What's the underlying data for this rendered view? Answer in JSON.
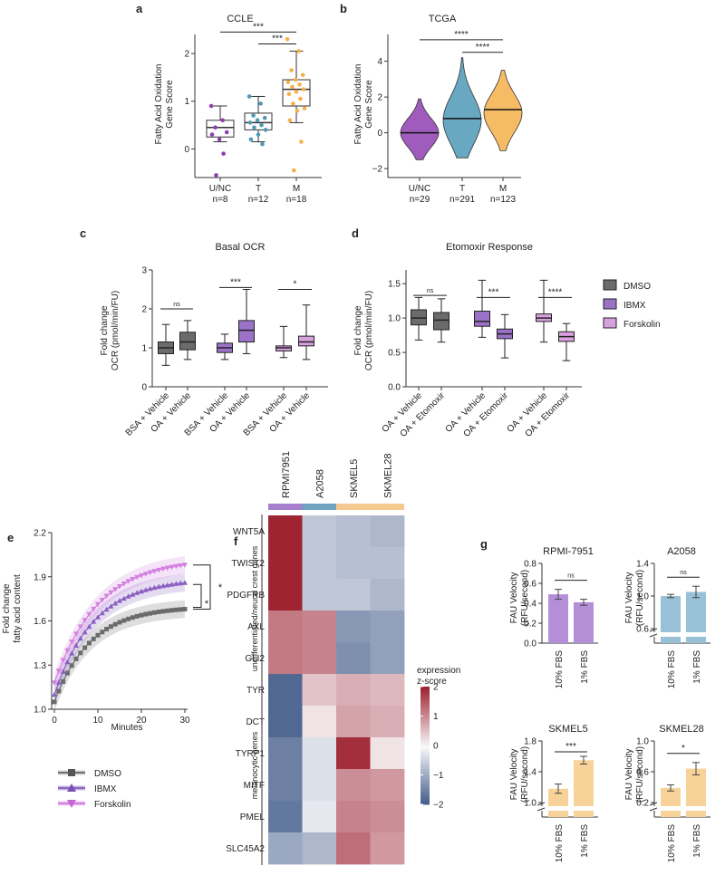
{
  "panels": {
    "a": {
      "letter": "a",
      "title": "CCLE",
      "ylabel_lines": [
        "Fatty Acid Oxidation",
        "Gene Score"
      ]
    },
    "b": {
      "letter": "b",
      "title": "TCGA",
      "ylabel_lines": [
        "Fatty Acid Oxidation",
        "Gene Score"
      ]
    },
    "c": {
      "letter": "c",
      "title": "Basal OCR",
      "ylabel_lines": [
        "Fold change",
        "OCR (pmol/min/FU)"
      ]
    },
    "d": {
      "letter": "d",
      "title": "Etomoxir Response",
      "ylabel_lines": [
        "Fold change",
        "OCR (pmol/min/FU)"
      ]
    },
    "e": {
      "letter": "e",
      "xlabel": "Minutes",
      "ylabel_lines": [
        "Fold change",
        "fatty acid content"
      ]
    },
    "f": {
      "letter": "f",
      "legend_title": [
        "expression",
        "z-score"
      ],
      "group_labels": [
        "undifferentiated/neural crest genes",
        "melanocytic genes"
      ]
    },
    "g": {
      "letter": "g",
      "ylabel_lines": [
        "FAU Velocity",
        "(RFU/second)"
      ],
      "xcats": [
        "10% FBS",
        "1% FBS"
      ]
    }
  },
  "legend_cd": {
    "items": [
      "DMSO",
      "IBMX",
      "Forskolin"
    ],
    "colors": [
      "#6b6b6b",
      "#9b72c8",
      "#d9a0e0"
    ]
  },
  "legend_e": {
    "items": [
      "DMSO",
      "IBMX",
      "Forskolin"
    ]
  },
  "colors": {
    "unc": "#8e3fb0",
    "t": "#4f99b6",
    "m": "#f5b04a"
  },
  "chart_data": [
    {
      "id": "a",
      "type": "box",
      "title": "CCLE",
      "ylabel": "Fatty Acid Oxidation Gene Score",
      "ylim": [
        -0.6,
        2.4
      ],
      "yticks": [
        0,
        1,
        2
      ],
      "categories": [
        "U/NC",
        "T",
        "M"
      ],
      "ns": [
        "n=8",
        "n=12",
        "n=18"
      ],
      "boxes": [
        {
          "q1": 0.25,
          "median": 0.45,
          "q3": 0.6,
          "wlo": 0.15,
          "whi": 0.9
        },
        {
          "q1": 0.4,
          "median": 0.55,
          "q3": 0.75,
          "wlo": 0.15,
          "whi": 1.1
        },
        {
          "q1": 0.9,
          "median": 1.25,
          "q3": 1.45,
          "wlo": 0.55,
          "whi": 2.05
        }
      ],
      "points": [
        [
          0.9,
          0.6,
          0.45,
          0.35,
          0.2,
          0.3,
          -0.1,
          -0.55
        ],
        [
          1.1,
          0.95,
          0.7,
          0.65,
          0.6,
          0.55,
          0.5,
          0.45,
          0.4,
          0.3,
          0.2,
          0.1
        ],
        [
          2.3,
          2.05,
          1.65,
          1.55,
          1.45,
          1.4,
          1.35,
          1.3,
          1.25,
          1.2,
          1.15,
          1.05,
          0.95,
          0.85,
          0.8,
          0.6,
          0.15,
          -0.45
        ]
      ],
      "sig": [
        {
          "from": 0,
          "to": 2,
          "label": "***",
          "y": 2.45
        },
        {
          "from": 1,
          "to": 2,
          "label": "***",
          "y": 2.2
        }
      ]
    },
    {
      "id": "b",
      "type": "violin",
      "title": "TCGA",
      "ylabel": "Fatty Acid Oxidation Gene Score",
      "ylim": [
        -2.5,
        5.5
      ],
      "yticks": [
        -2,
        0,
        2,
        4
      ],
      "categories": [
        "U/NC",
        "T",
        "M"
      ],
      "ns": [
        "n=29",
        "n=291",
        "n=123"
      ],
      "violins": [
        {
          "min": -1.5,
          "max": 1.9,
          "median": 0.0,
          "mode": 0.0,
          "width": 1.0
        },
        {
          "min": -1.4,
          "max": 4.2,
          "median": 0.8,
          "mode": 0.7,
          "width": 1.0
        },
        {
          "min": -1.0,
          "max": 3.5,
          "median": 1.3,
          "mode": 1.1,
          "width": 1.0
        }
      ],
      "sig": [
        {
          "from": 0,
          "to": 2,
          "label": "****",
          "y": 5.2
        },
        {
          "from": 1,
          "to": 2,
          "label": "****",
          "y": 4.5
        }
      ]
    },
    {
      "id": "c",
      "type": "box",
      "title": "Basal OCR",
      "ylabel": "Fold change OCR (pmol/min/FU)",
      "ylim": [
        0,
        3
      ],
      "yticks": [
        0,
        1,
        2,
        3
      ],
      "categories": [
        "BSA + Vehicle",
        "OA + Vehicle",
        "BSA + Vehicle",
        "OA + Vehicle",
        "BSA + Vehicle",
        "OA + Vehicle"
      ],
      "series": [
        "DMSO",
        "DMSO",
        "IBMX",
        "IBMX",
        "Forskolin",
        "Forskolin"
      ],
      "boxes": [
        {
          "q1": 0.85,
          "median": 1.0,
          "q3": 1.15,
          "wlo": 0.55,
          "whi": 1.6
        },
        {
          "q1": 0.95,
          "median": 1.15,
          "q3": 1.4,
          "wlo": 0.7,
          "whi": 1.7
        },
        {
          "q1": 0.88,
          "median": 1.0,
          "q3": 1.12,
          "wlo": 0.7,
          "whi": 1.35
        },
        {
          "q1": 1.15,
          "median": 1.45,
          "q3": 1.7,
          "wlo": 0.85,
          "whi": 2.5
        },
        {
          "q1": 0.92,
          "median": 1.0,
          "q3": 1.05,
          "wlo": 0.75,
          "whi": 1.55
        },
        {
          "q1": 1.05,
          "median": 1.15,
          "q3": 1.3,
          "wlo": 0.7,
          "whi": 2.1
        }
      ],
      "sig": [
        {
          "from": 0,
          "to": 1,
          "label": "ns",
          "y": 2.0
        },
        {
          "from": 2,
          "to": 3,
          "label": "***",
          "y": 2.55
        },
        {
          "from": 4,
          "to": 5,
          "label": "*",
          "y": 2.5
        }
      ]
    },
    {
      "id": "d",
      "type": "box",
      "title": "Etomoxir Response",
      "ylabel": "Fold change OCR (pmol/min/FU)",
      "ylim": [
        0,
        1.7
      ],
      "yticks": [
        0.0,
        0.5,
        1.0,
        1.5
      ],
      "categories": [
        "OA + Vehicle",
        "OA + Etomoxir",
        "OA + Vehicle",
        "OA + Etomoxir",
        "OA + Vehicle",
        "OA + Etomoxir"
      ],
      "series": [
        "DMSO",
        "DMSO",
        "IBMX",
        "IBMX",
        "Forskolin",
        "Forskolin"
      ],
      "boxes": [
        {
          "q1": 0.9,
          "median": 1.0,
          "q3": 1.12,
          "wlo": 0.68,
          "whi": 1.3
        },
        {
          "q1": 0.83,
          "median": 0.97,
          "q3": 1.08,
          "wlo": 0.65,
          "whi": 1.28
        },
        {
          "q1": 0.88,
          "median": 0.95,
          "q3": 1.1,
          "wlo": 0.72,
          "whi": 1.55
        },
        {
          "q1": 0.7,
          "median": 0.77,
          "q3": 0.84,
          "wlo": 0.42,
          "whi": 1.05
        },
        {
          "q1": 0.95,
          "median": 1.0,
          "q3": 1.06,
          "wlo": 0.65,
          "whi": 1.55
        },
        {
          "q1": 0.66,
          "median": 0.73,
          "q3": 0.8,
          "wlo": 0.38,
          "whi": 0.92
        }
      ],
      "sig": [
        {
          "from": 0,
          "to": 1,
          "label": "ns",
          "y": 1.33
        },
        {
          "from": 2,
          "to": 3,
          "label": "***",
          "y": 1.3
        },
        {
          "from": 4,
          "to": 5,
          "label": "****",
          "y": 1.3
        }
      ]
    },
    {
      "id": "e",
      "type": "line",
      "xlabel": "Minutes",
      "ylabel": "Fold change fatty acid content",
      "xlim": [
        0,
        30
      ],
      "xticks": [
        0,
        10,
        20,
        30
      ],
      "ylim": [
        1.0,
        2.2
      ],
      "yticks": [
        1.0,
        1.3,
        1.6,
        1.9,
        2.2
      ],
      "series": [
        {
          "name": "DMSO",
          "color": "#6b6b6b",
          "end": 1.68,
          "start": 1.05,
          "rate": 0.12
        },
        {
          "name": "IBMX",
          "color": "#8a5fbf",
          "end": 1.86,
          "start": 1.1,
          "rate": 0.11
        },
        {
          "name": "Forskolin",
          "color": "#d37fe0",
          "end": 1.98,
          "start": 1.18,
          "rate": 0.1
        }
      ],
      "sig": [
        {
          "label": "*",
          "from": 2,
          "to": 0
        },
        {
          "label": "*",
          "from": 1,
          "to": 0
        }
      ]
    },
    {
      "id": "f",
      "type": "heatmap",
      "columns": [
        "RPMI7951",
        "A2058",
        "SKMEL5",
        "SKMEL28"
      ],
      "column_colors": [
        "#a77fcf",
        "#6ea3c1",
        "#f5c98f",
        "#f5c98f"
      ],
      "rows": [
        "WNT5A",
        "TWIST2",
        "PDGFRB",
        "AXL",
        "GLI2",
        "TYR",
        "DCT",
        "TYRP1",
        "MITF",
        "PMEL",
        "SLC45A2"
      ],
      "values": [
        [
          2.0,
          -0.6,
          -0.7,
          -0.8
        ],
        [
          2.0,
          -0.6,
          -0.7,
          -0.7
        ],
        [
          2.0,
          -0.6,
          -0.6,
          -0.8
        ],
        [
          1.2,
          1.1,
          -1.2,
          -1.1
        ],
        [
          1.2,
          1.1,
          -1.3,
          -1.1
        ],
        [
          -1.8,
          0.5,
          0.7,
          0.6
        ],
        [
          -1.8,
          0.2,
          0.8,
          0.7
        ],
        [
          -1.5,
          -0.3,
          1.9,
          0.2
        ],
        [
          -1.5,
          -0.3,
          1.0,
          0.9
        ],
        [
          -1.6,
          -0.2,
          1.1,
          1.0
        ],
        [
          -1.0,
          -0.8,
          1.3,
          0.9
        ]
      ],
      "scale": [
        -2,
        2
      ],
      "scale_ticks": [
        2,
        1,
        0,
        -1,
        -2
      ]
    },
    {
      "id": "g1",
      "type": "bar",
      "title": "RPMI-7951",
      "categories": [
        "10% FBS",
        "1% FBS"
      ],
      "values": [
        0.49,
        0.41
      ],
      "errors": [
        0.05,
        0.03
      ],
      "ylim": [
        0,
        0.8
      ],
      "yticks": [
        0.0,
        0.2,
        0.4,
        0.6,
        0.8
      ],
      "color": "#b48fd8",
      "break": null,
      "sig": "ns"
    },
    {
      "id": "g2",
      "type": "bar",
      "title": "A2058",
      "categories": [
        "10% FBS",
        "1% FBS"
      ],
      "values": [
        1.0,
        1.05
      ],
      "errors": [
        0.02,
        0.07
      ],
      "ylim": [
        0,
        1.4
      ],
      "yticks": [
        0.6,
        1.0,
        1.4
      ],
      "color": "#98c0d6",
      "break": [
        0,
        0.6
      ],
      "sig": "ns"
    },
    {
      "id": "g3",
      "type": "bar",
      "title": "SKMEL5",
      "categories": [
        "10% FBS",
        "1% FBS"
      ],
      "values": [
        1.18,
        1.55
      ],
      "errors": [
        0.06,
        0.05
      ],
      "ylim": [
        0,
        1.8
      ],
      "yticks": [
        1.0,
        1.4,
        1.8
      ],
      "color": "#f7d299",
      "break": [
        0,
        1.0
      ],
      "sig": "***"
    },
    {
      "id": "g4",
      "type": "bar",
      "title": "SKMEL28",
      "categories": [
        "10% FBS",
        "1% FBS"
      ],
      "values": [
        0.39,
        0.64
      ],
      "errors": [
        0.04,
        0.08
      ],
      "ylim": [
        0,
        1.0
      ],
      "yticks": [
        0.2,
        0.6,
        1.0
      ],
      "color": "#f7d299",
      "break": [
        0,
        0.2
      ],
      "sig": "*"
    }
  ]
}
